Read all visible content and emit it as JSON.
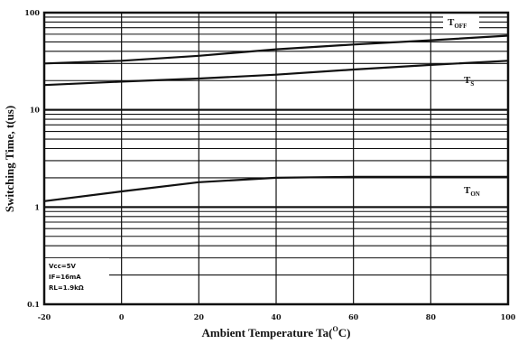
{
  "chart_data": {
    "type": "line",
    "title": "",
    "xlabel_main": "Ambient Temperature Ta(",
    "xlabel_sup": "O",
    "xlabel_end": "C)",
    "ylabel": "Switching Time, t(us)",
    "xlim": [
      -20,
      100
    ],
    "ylim": [
      0.1,
      100
    ],
    "yscale": "log",
    "grid": true,
    "x_ticks": [
      "-20",
      "0",
      "20",
      "40",
      "60",
      "80",
      "100"
    ],
    "y_ticks": [
      "100",
      "10",
      "1",
      "0.1"
    ],
    "series": [
      {
        "label_main": "T",
        "label_sub": "OFF",
        "x": [
          -20,
          0,
          20,
          40,
          60,
          80,
          100
        ],
        "y": [
          30,
          32,
          36,
          42,
          47,
          52,
          58
        ]
      },
      {
        "label_main": "T",
        "label_sub": "S",
        "x": [
          -20,
          0,
          20,
          40,
          60,
          80,
          100
        ],
        "y": [
          18,
          19.5,
          21,
          23,
          26,
          29,
          32
        ]
      },
      {
        "label_main": "T",
        "label_sub": "ON",
        "x": [
          -20,
          0,
          20,
          40,
          60,
          80,
          100
        ],
        "y": [
          1.15,
          1.45,
          1.8,
          2.0,
          2.05,
          2.05,
          2.05
        ]
      }
    ],
    "conditions": [
      "Vcc=5V",
      "IF=16mA",
      "RL=1.9kΩ"
    ]
  }
}
